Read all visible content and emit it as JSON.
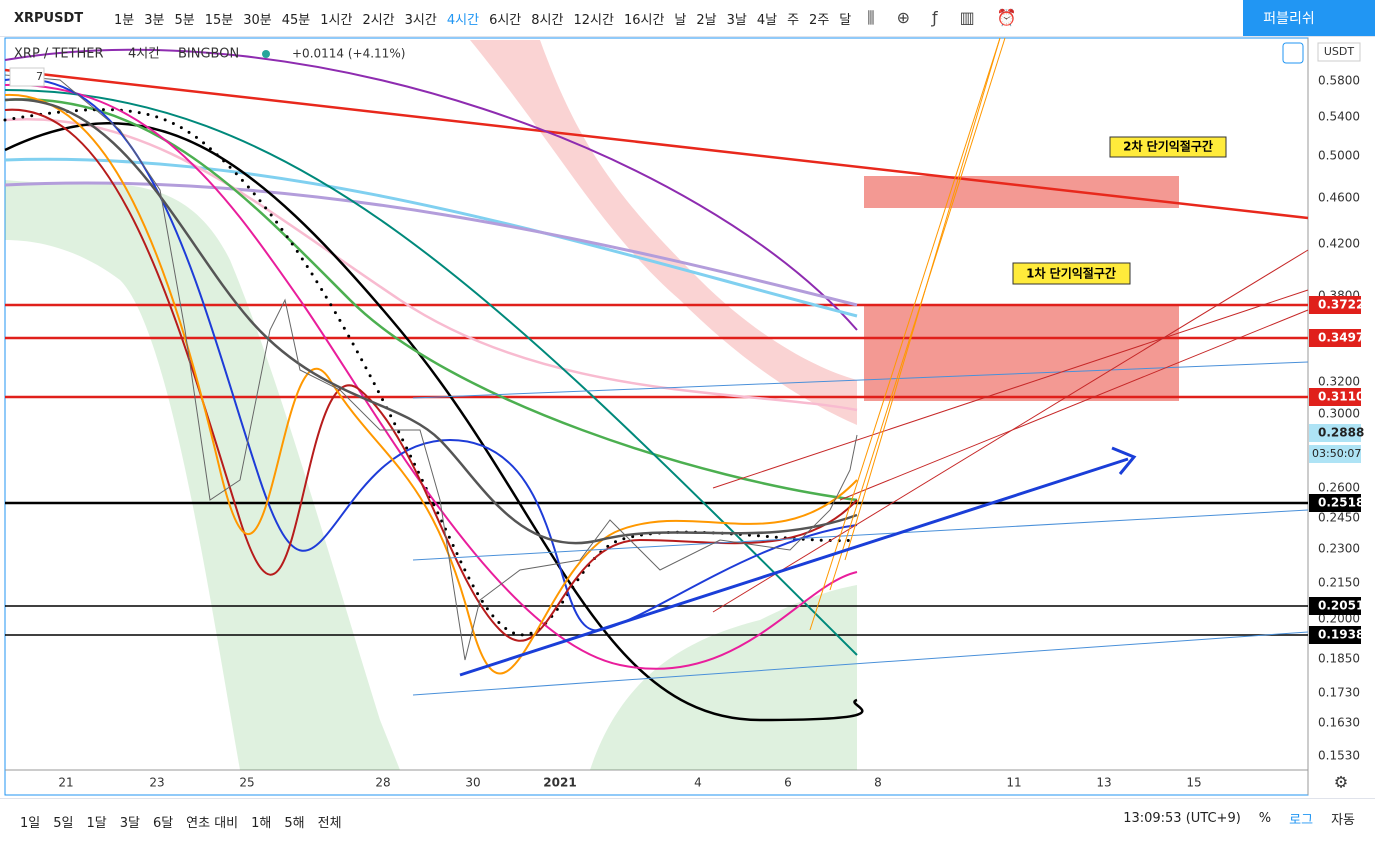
{
  "toolbar": {
    "symbol": "XRPUSDT",
    "intervals": [
      "1분",
      "3분",
      "5분",
      "15분",
      "30분",
      "45분",
      "1시간",
      "2시간",
      "3시간",
      "4시간",
      "6시간",
      "8시간",
      "12시간",
      "16시간",
      "날",
      "2날",
      "3날",
      "4날",
      "주",
      "2주",
      "달"
    ],
    "publish": "퍼블리쉬"
  },
  "legend": {
    "symbol_name": "XRP / TETHER",
    "interval": "4시간",
    "exchange": "BINGBON",
    "change": "+0.0114 (+4.11%)",
    "indicator_count": "7"
  },
  "price_axis": {
    "currency": "USDT",
    "ticks": [
      "0.5800",
      "0.5400",
      "0.5000",
      "0.4600",
      "0.4200",
      "0.3800",
      "0.3200",
      "0.3000",
      "0.2600",
      "0.2450",
      "0.2300",
      "0.2150",
      "0.2000",
      "0.1850",
      "0.1730",
      "0.1630",
      "0.1530"
    ]
  },
  "price_labels": [
    {
      "text": "0.3722",
      "color": "#e0201b"
    },
    {
      "text": "0.3497",
      "color": "#e0201b"
    },
    {
      "text": "0.3110",
      "color": "#e0201b"
    },
    {
      "text": "0.2888",
      "color": "#aee3f5"
    },
    {
      "text": "0.2518",
      "color": "#000000"
    },
    {
      "text": "0.2051",
      "color": "#000000"
    },
    {
      "text": "0.1938",
      "color": "#000000"
    }
  ],
  "countdown": "03:50:07",
  "time_axis": {
    "ticks": [
      "21",
      "23",
      "25",
      "28",
      "30",
      "2021",
      "4",
      "6",
      "8",
      "11",
      "13",
      "15"
    ]
  },
  "annotations": [
    "2차 단기익절구간",
    "1차 단기익절구간"
  ],
  "bottom_bar": {
    "ranges": [
      "1일",
      "5일",
      "1달",
      "3달",
      "6달",
      "연초 대비",
      "1해",
      "5해",
      "전체"
    ],
    "clock": "13:09:53 (UTC+9)",
    "percent": "%",
    "log": "로그",
    "auto": "자동"
  }
}
